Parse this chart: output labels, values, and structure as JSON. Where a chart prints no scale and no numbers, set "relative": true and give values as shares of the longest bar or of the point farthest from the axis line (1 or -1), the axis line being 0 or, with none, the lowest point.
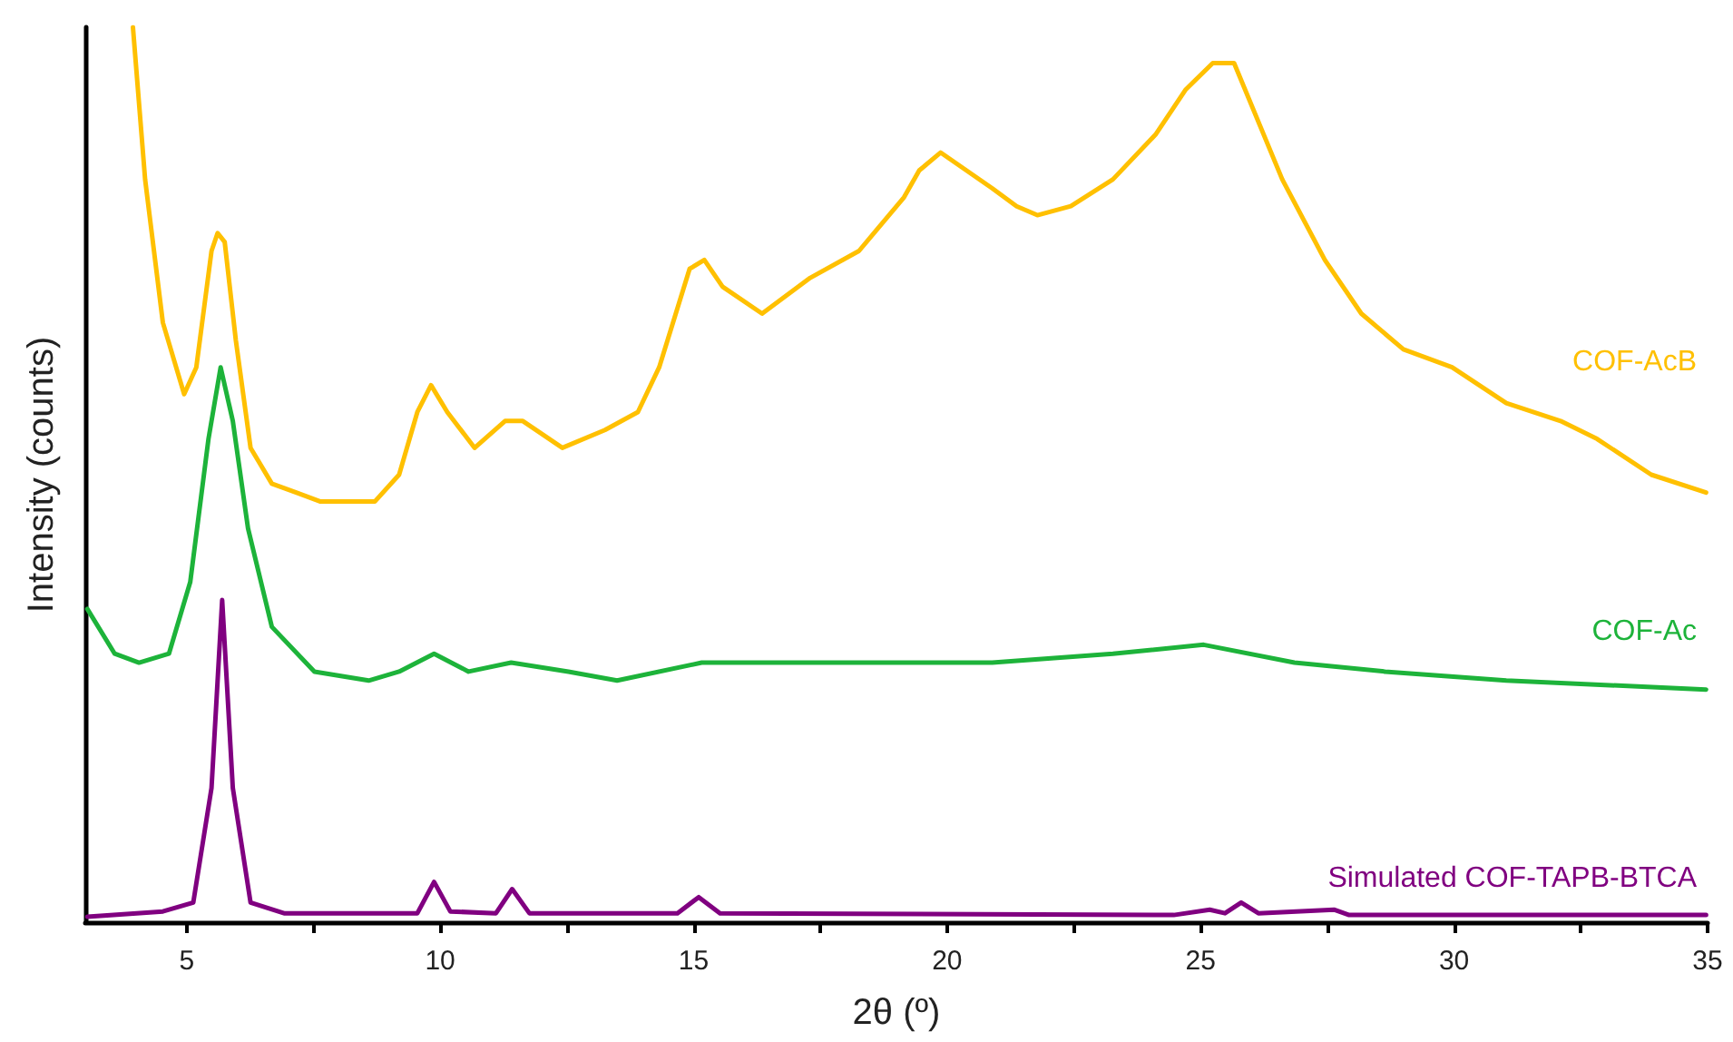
{
  "chart_data": {
    "type": "line",
    "relative": true,
    "xlabel": "2θ (º)",
    "ylabel": "Intensity (counts)",
    "xlim": [
      3,
      35
    ],
    "xticks": [
      5,
      {
        "value": 7.5,
        "label": null
      },
      10,
      {
        "value": 12.5,
        "label": null
      },
      15,
      {
        "value": 17.5,
        "label": null
      },
      20,
      {
        "value": 22.5,
        "label": null
      },
      25,
      {
        "value": 27.5,
        "label": null
      },
      30,
      {
        "value": 32.5,
        "label": null
      },
      35
    ],
    "marker": "none",
    "line_style": "solid",
    "grid": false,
    "legend": false,
    "series": [
      {
        "name": "COF-AcB",
        "color": "#ffc000",
        "x": [
          3.94,
          4.18,
          4.53,
          4.95,
          5.19,
          5.49,
          5.61,
          5.75,
          5.97,
          6.26,
          6.68,
          7.16,
          7.64,
          8.71,
          9.19,
          9.55,
          9.82,
          10.14,
          10.68,
          11.28,
          11.63,
          12.41,
          13.25,
          13.9,
          14.32,
          14.92,
          15.21,
          15.57,
          16.35,
          17.3,
          18.26,
          19.15,
          19.45,
          19.87,
          20.89,
          21.37,
          21.78,
          22.44,
          23.27,
          24.11,
          24.7,
          25.24,
          25.66,
          26.61,
          27.45,
          28.17,
          29.0,
          29.96,
          31.03,
          32.1,
          32.82,
          33.89,
          34.97
        ],
        "values": [
          1.0,
          0.83,
          0.67,
          0.59,
          0.62,
          0.75,
          0.77,
          0.76,
          0.65,
          0.53,
          0.49,
          0.48,
          0.47,
          0.47,
          0.5,
          0.57,
          0.6,
          0.57,
          0.53,
          0.56,
          0.56,
          0.53,
          0.55,
          0.57,
          0.62,
          0.73,
          0.74,
          0.71,
          0.68,
          0.72,
          0.75,
          0.81,
          0.84,
          0.86,
          0.82,
          0.8,
          0.79,
          0.8,
          0.83,
          0.88,
          0.93,
          0.96,
          0.96,
          0.83,
          0.74,
          0.68,
          0.64,
          0.62,
          0.58,
          0.56,
          0.54,
          0.5,
          0.48
        ]
      },
      {
        "name": "COF-Ac",
        "color": "#1db33a",
        "x": [
          3.04,
          3.58,
          4.06,
          4.65,
          5.07,
          5.43,
          5.67,
          5.91,
          6.21,
          6.68,
          7.52,
          8.59,
          9.19,
          9.88,
          10.56,
          11.4,
          12.53,
          13.49,
          15.16,
          17.07,
          19.15,
          20.89,
          23.27,
          25.06,
          26.85,
          28.64,
          31.03,
          34.97
        ],
        "values": [
          0.35,
          0.3,
          0.29,
          0.3,
          0.38,
          0.54,
          0.62,
          0.56,
          0.44,
          0.33,
          0.28,
          0.27,
          0.28,
          0.3,
          0.28,
          0.29,
          0.28,
          0.27,
          0.29,
          0.29,
          0.29,
          0.29,
          0.3,
          0.31,
          0.29,
          0.28,
          0.27,
          0.26
        ]
      },
      {
        "name": "Simulated COF-TAPB-BTCA",
        "color": "#800080",
        "x": [
          3.04,
          4.53,
          5.13,
          5.49,
          5.7,
          5.91,
          6.26,
          6.92,
          9.55,
          9.88,
          10.2,
          11.1,
          11.42,
          11.76,
          14.68,
          15.1,
          15.52,
          24.47,
          25.18,
          25.48,
          25.8,
          26.14,
          27.63,
          27.93,
          34.97
        ],
        "values": [
          0.006,
          0.012,
          0.022,
          0.15,
          0.36,
          0.15,
          0.022,
          0.01,
          0.01,
          0.045,
          0.012,
          0.01,
          0.037,
          0.01,
          0.01,
          0.028,
          0.01,
          0.008,
          0.014,
          0.01,
          0.022,
          0.01,
          0.014,
          0.008,
          0.008
        ]
      }
    ]
  }
}
